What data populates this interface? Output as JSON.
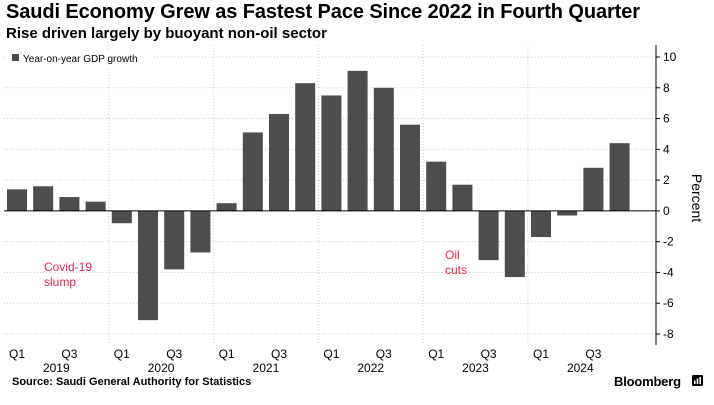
{
  "header": {
    "title": "Saudi Economy Grew as Fastest Pace Since 2022 in Fourth Quarter",
    "subtitle": "Rise driven largely by buoyant non-oil sector"
  },
  "footer": {
    "source": "Source: Saudi General Authority for Statistics",
    "brand": "Bloomberg"
  },
  "colors": {
    "bar": "#4d4d4d",
    "annotation": "#e4254a",
    "grid": "#cccccc",
    "axis": "#000000"
  },
  "chart_data": {
    "type": "bar",
    "title": "Saudi Economy Grew as Fastest Pace Since 2022 in Fourth Quarter",
    "subtitle": "Rise driven largely by buoyant non-oil sector",
    "legend": "Year-on-year GDP growth",
    "ylabel": "Percent",
    "ylim": [
      -8.5,
      10.5
    ],
    "yticks": [
      10,
      8,
      6,
      4,
      2,
      0,
      -2,
      -4,
      -6,
      -8
    ],
    "categories": [
      "2019 Q1",
      "2019 Q2",
      "2019 Q3",
      "2019 Q4",
      "2020 Q1",
      "2020 Q2",
      "2020 Q3",
      "2020 Q4",
      "2021 Q1",
      "2021 Q2",
      "2021 Q3",
      "2021 Q4",
      "2022 Q1",
      "2022 Q2",
      "2022 Q3",
      "2022 Q4",
      "2023 Q1",
      "2023 Q2",
      "2023 Q3",
      "2023 Q4",
      "2024 Q1",
      "2024 Q2",
      "2024 Q3",
      "2024 Q4"
    ],
    "values": [
      1.4,
      1.6,
      0.9,
      0.6,
      -0.8,
      -7.1,
      -3.8,
      -2.7,
      0.5,
      5.1,
      6.3,
      8.3,
      7.5,
      9.1,
      8.0,
      5.6,
      3.2,
      1.7,
      -3.2,
      -4.3,
      -1.7,
      -0.3,
      2.8,
      4.4
    ],
    "xtick_labels": [
      "Q1",
      "Q3",
      "Q1",
      "Q3",
      "Q1",
      "Q3",
      "Q1",
      "Q3",
      "Q1",
      "Q3",
      "Q1",
      "Q3"
    ],
    "year_labels": [
      "2019",
      "2020",
      "2021",
      "2022",
      "2023",
      "2024"
    ],
    "annotations": [
      {
        "text": "Covid-19",
        "line2": "slump"
      },
      {
        "text": "Oil",
        "line2": "cuts"
      }
    ]
  }
}
